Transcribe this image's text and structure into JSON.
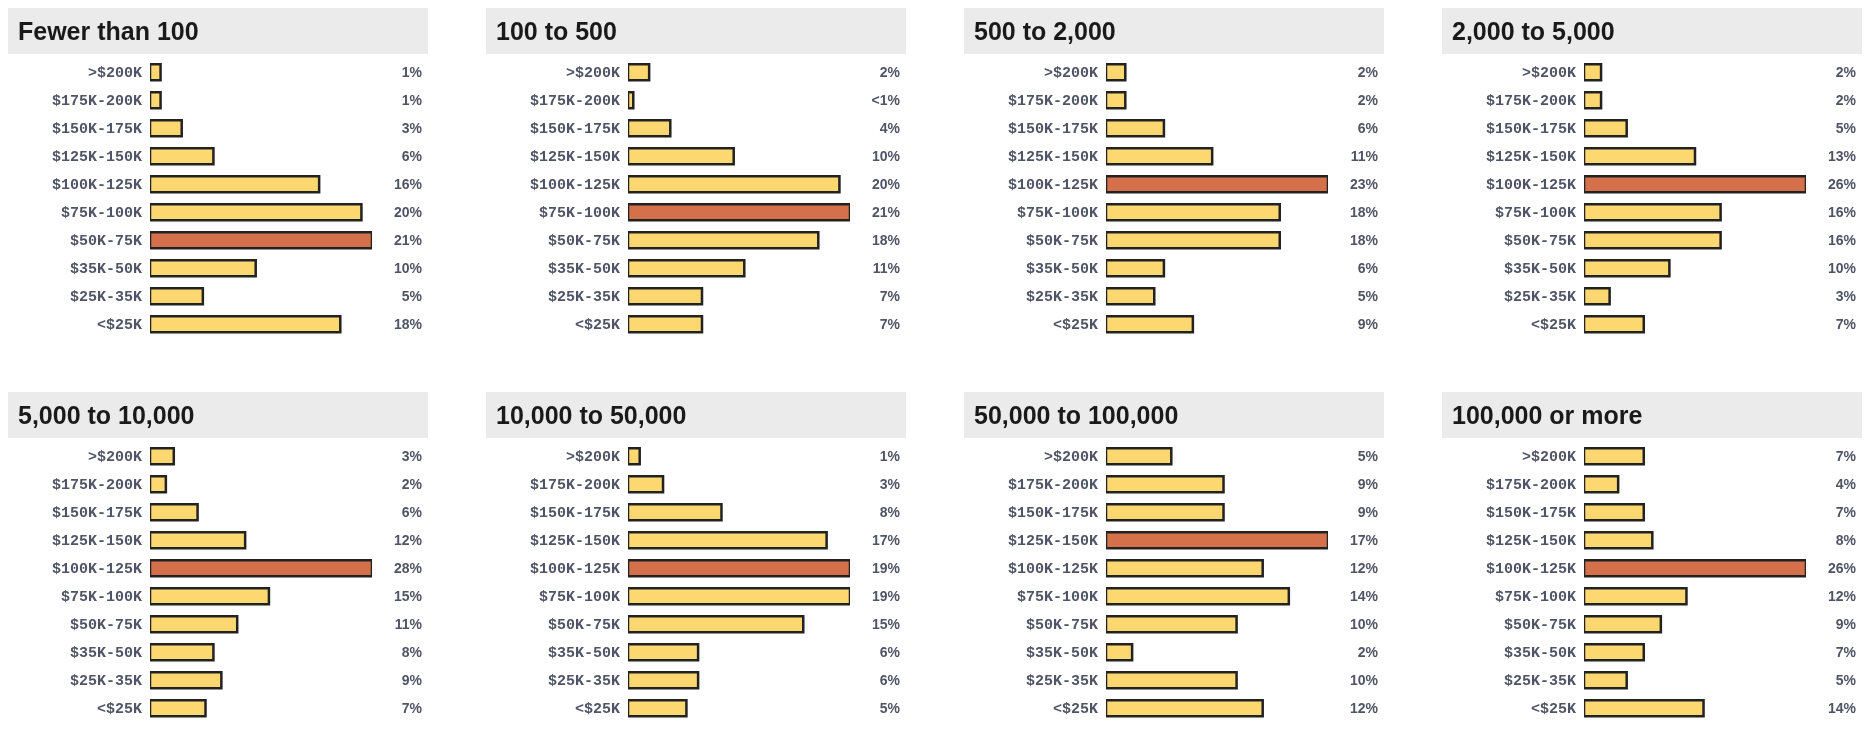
{
  "chart_data": [
    {
      "type": "bar",
      "orientation": "horizontal",
      "title": "Fewer than 100",
      "categories": [
        ">$200K",
        "$175K-200K",
        "$150K-175K",
        "$125K-150K",
        "$100K-125K",
        "$75K-100K",
        "$50K-75K",
        "$35K-50K",
        "$25K-35K",
        "<$25K"
      ],
      "values": [
        1,
        1,
        3,
        6,
        16,
        20,
        21,
        10,
        5,
        18
      ],
      "value_labels": [
        "1%",
        "1%",
        "3%",
        "6%",
        "16%",
        "20%",
        "21%",
        "10%",
        "5%",
        "18%"
      ],
      "colors": [
        "#fdd870",
        "#fdd870",
        "#fdd870",
        "#fdd870",
        "#fdd870",
        "#fdd870",
        "#d4714a",
        "#fdd870",
        "#fdd870",
        "#fdd870"
      ]
    },
    {
      "type": "bar",
      "orientation": "horizontal",
      "title": "100 to 500",
      "categories": [
        ">$200K",
        "$175K-200K",
        "$150K-175K",
        "$125K-150K",
        "$100K-125K",
        "$75K-100K",
        "$50K-75K",
        "$35K-50K",
        "$25K-35K",
        "<$25K"
      ],
      "values": [
        2,
        0.5,
        4,
        10,
        20,
        21,
        18,
        11,
        7,
        7
      ],
      "value_labels": [
        "2%",
        "<1%",
        "4%",
        "10%",
        "20%",
        "21%",
        "18%",
        "11%",
        "7%",
        "7%"
      ],
      "colors": [
        "#fdd870",
        "#fdd870",
        "#fdd870",
        "#fdd870",
        "#fdd870",
        "#d4714a",
        "#fdd870",
        "#fdd870",
        "#fdd870",
        "#fdd870"
      ]
    },
    {
      "type": "bar",
      "orientation": "horizontal",
      "title": "500 to 2,000",
      "categories": [
        ">$200K",
        "$175K-200K",
        "$150K-175K",
        "$125K-150K",
        "$100K-125K",
        "$75K-100K",
        "$50K-75K",
        "$35K-50K",
        "$25K-35K",
        "<$25K"
      ],
      "values": [
        2,
        2,
        6,
        11,
        23,
        18,
        18,
        6,
        5,
        9
      ],
      "value_labels": [
        "2%",
        "2%",
        "6%",
        "11%",
        "23%",
        "18%",
        "18%",
        "6%",
        "5%",
        "9%"
      ],
      "colors": [
        "#fdd870",
        "#fdd870",
        "#fdd870",
        "#fdd870",
        "#d4714a",
        "#fdd870",
        "#fdd870",
        "#fdd870",
        "#fdd870",
        "#fdd870"
      ]
    },
    {
      "type": "bar",
      "orientation": "horizontal",
      "title": "2,000 to 5,000",
      "categories": [
        ">$200K",
        "$175K-200K",
        "$150K-175K",
        "$125K-150K",
        "$100K-125K",
        "$75K-100K",
        "$50K-75K",
        "$35K-50K",
        "$25K-35K",
        "<$25K"
      ],
      "values": [
        2,
        2,
        5,
        13,
        26,
        16,
        16,
        10,
        3,
        7
      ],
      "value_labels": [
        "2%",
        "2%",
        "5%",
        "13%",
        "26%",
        "16%",
        "16%",
        "10%",
        "3%",
        "7%"
      ],
      "colors": [
        "#fdd870",
        "#fdd870",
        "#fdd870",
        "#fdd870",
        "#d4714a",
        "#fdd870",
        "#fdd870",
        "#fdd870",
        "#fdd870",
        "#fdd870"
      ]
    },
    {
      "type": "bar",
      "orientation": "horizontal",
      "title": "5,000 to 10,000",
      "categories": [
        ">$200K",
        "$175K-200K",
        "$150K-175K",
        "$125K-150K",
        "$100K-125K",
        "$75K-100K",
        "$50K-75K",
        "$35K-50K",
        "$25K-35K",
        "<$25K"
      ],
      "values": [
        3,
        2,
        6,
        12,
        28,
        15,
        11,
        8,
        9,
        7
      ],
      "value_labels": [
        "3%",
        "2%",
        "6%",
        "12%",
        "28%",
        "15%",
        "11%",
        "8%",
        "9%",
        "7%"
      ],
      "colors": [
        "#fdd870",
        "#fdd870",
        "#fdd870",
        "#fdd870",
        "#d4714a",
        "#fdd870",
        "#fdd870",
        "#fdd870",
        "#fdd870",
        "#fdd870"
      ]
    },
    {
      "type": "bar",
      "orientation": "horizontal",
      "title": "10,000 to 50,000",
      "categories": [
        ">$200K",
        "$175K-200K",
        "$150K-175K",
        "$125K-150K",
        "$100K-125K",
        "$75K-100K",
        "$50K-75K",
        "$35K-50K",
        "$25K-35K",
        "<$25K"
      ],
      "values": [
        1,
        3,
        8,
        17,
        19,
        19,
        15,
        6,
        6,
        5
      ],
      "value_labels": [
        "1%",
        "3%",
        "8%",
        "17%",
        "19%",
        "19%",
        "15%",
        "6%",
        "6%",
        "5%"
      ],
      "colors": [
        "#fdd870",
        "#fdd870",
        "#fdd870",
        "#fdd870",
        "#d4714a",
        "#fdd870",
        "#fdd870",
        "#fdd870",
        "#fdd870",
        "#fdd870"
      ]
    },
    {
      "type": "bar",
      "orientation": "horizontal",
      "title": "50,000 to 100,000",
      "categories": [
        ">$200K",
        "$175K-200K",
        "$150K-175K",
        "$125K-150K",
        "$100K-125K",
        "$75K-100K",
        "$50K-75K",
        "$35K-50K",
        "$25K-35K",
        "<$25K"
      ],
      "values": [
        5,
        9,
        9,
        17,
        12,
        14,
        10,
        2,
        10,
        12
      ],
      "value_labels": [
        "5%",
        "9%",
        "9%",
        "17%",
        "12%",
        "14%",
        "10%",
        "2%",
        "10%",
        "12%"
      ],
      "colors": [
        "#fdd870",
        "#fdd870",
        "#fdd870",
        "#d4714a",
        "#fdd870",
        "#fdd870",
        "#fdd870",
        "#fdd870",
        "#fdd870",
        "#fdd870"
      ]
    },
    {
      "type": "bar",
      "orientation": "horizontal",
      "title": "100,000 or more",
      "categories": [
        ">$200K",
        "$175K-200K",
        "$150K-175K",
        "$125K-150K",
        "$100K-125K",
        "$75K-100K",
        "$50K-75K",
        "$35K-50K",
        "$25K-35K",
        "<$25K"
      ],
      "values": [
        7,
        4,
        7,
        8,
        26,
        12,
        9,
        7,
        5,
        14
      ],
      "value_labels": [
        "7%",
        "4%",
        "7%",
        "8%",
        "26%",
        "12%",
        "9%",
        "7%",
        "5%",
        "14%"
      ],
      "colors": [
        "#fdd870",
        "#fdd870",
        "#fdd870",
        "#fdd870",
        "#d4714a",
        "#fdd870",
        "#fdd870",
        "#fdd870",
        "#fdd870",
        "#fdd870"
      ]
    }
  ]
}
